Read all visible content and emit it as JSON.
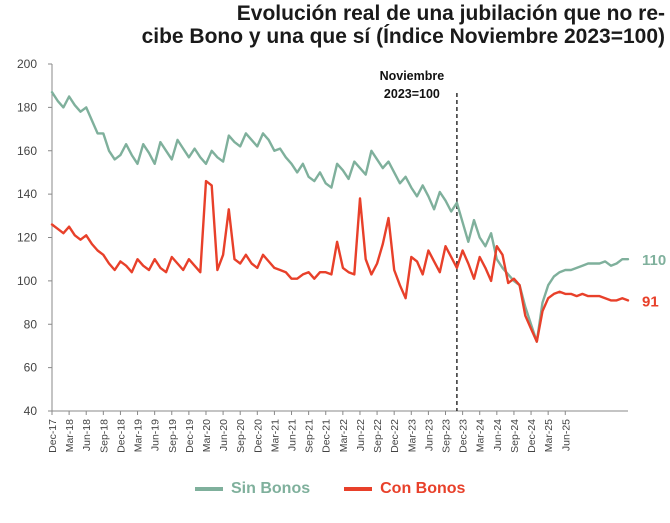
{
  "chart_data": {
    "type": "line",
    "title_line1": "Evolución real de una jubilación que no re-",
    "title_line2": "cibe Bono y una que sí (Índice Noviembre 2023=100)",
    "ylim": [
      40,
      200
    ],
    "yticks": [
      "200",
      "180",
      "160",
      "140",
      "120",
      "100",
      "80",
      "60",
      "40"
    ],
    "x_tick_labels": [
      "Dec-17",
      "Mar-18",
      "Jun-18",
      "Sep-18",
      "Dec-18",
      "Mar-19",
      "Jun-19",
      "Sep-19",
      "Dec-19",
      "Mar-20",
      "Jun-20",
      "Sep-20",
      "Dec-20",
      "Mar-21",
      "Jun-21",
      "Sep-21",
      "Dec-21",
      "Mar-22",
      "Jun-22",
      "Sep-22",
      "Dec-22",
      "Mar-23",
      "Jun-23",
      "Sep-23",
      "Dec-23",
      "Mar-24",
      "Jun-24",
      "Sep-24",
      "Dec-24",
      "Mar-25",
      "Jun-25"
    ],
    "annotation_line1": "Noviembre",
    "annotation_line2": "2023=100",
    "annotation_index": 71,
    "series": [
      {
        "name": "Sin Bonos",
        "color": "#7fb09c",
        "end_label": "110",
        "values": [
          187,
          183,
          180,
          185,
          181,
          178,
          180,
          174,
          168,
          168,
          160,
          156,
          158,
          163,
          158,
          154,
          163,
          159,
          154,
          164,
          160,
          156,
          165,
          161,
          157,
          161,
          157,
          154,
          160,
          157,
          155,
          167,
          164,
          162,
          168,
          165,
          162,
          168,
          165,
          160,
          161,
          157,
          154,
          150,
          154,
          148,
          146,
          150,
          145,
          143,
          154,
          151,
          147,
          155,
          152,
          149,
          160,
          156,
          152,
          155,
          150,
          145,
          148,
          143,
          139,
          144,
          139,
          133,
          141,
          137,
          132,
          136,
          127,
          118,
          128,
          120,
          116,
          122,
          110,
          106,
          103,
          100,
          98,
          88,
          80,
          72,
          90,
          98,
          102,
          104,
          105,
          105,
          106,
          107,
          108,
          108,
          108,
          109,
          107,
          108,
          110,
          110
        ]
      },
      {
        "name": "Con Bonos",
        "color": "#e8402a",
        "end_label": "91",
        "values": [
          126,
          124,
          122,
          125,
          121,
          119,
          121,
          117,
          114,
          112,
          108,
          105,
          109,
          107,
          104,
          110,
          107,
          105,
          110,
          106,
          104,
          111,
          108,
          105,
          110,
          107,
          104,
          146,
          144,
          105,
          112,
          133,
          110,
          108,
          112,
          108,
          106,
          112,
          109,
          106,
          105,
          104,
          101,
          101,
          103,
          104,
          101,
          104,
          104,
          103,
          118,
          106,
          104,
          103,
          138,
          110,
          103,
          108,
          117,
          129,
          105,
          98,
          92,
          111,
          109,
          103,
          114,
          109,
          104,
          116,
          111,
          106,
          114,
          108,
          101,
          111,
          106,
          100,
          116,
          112,
          99,
          101,
          98,
          84,
          78,
          72,
          86,
          92,
          94,
          95,
          94,
          94,
          93,
          94,
          93,
          93,
          93,
          92,
          91,
          91,
          92,
          91
        ]
      }
    ]
  }
}
